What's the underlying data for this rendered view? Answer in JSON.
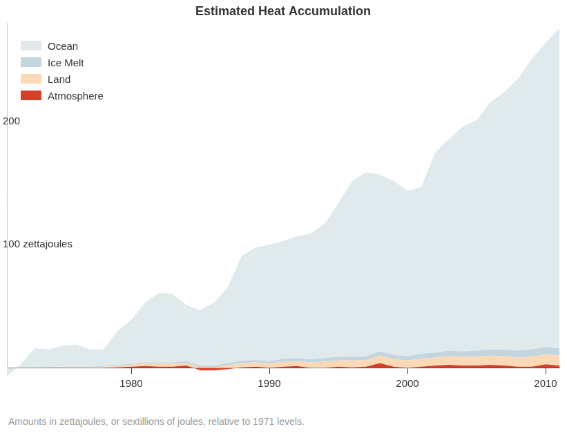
{
  "chart_data": {
    "type": "area",
    "title": "Estimated Heat Accumulation",
    "note": "Amounts in zettajoules, or sextillions of joules, relative to 1971 levels.",
    "x": [
      1971,
      1972,
      1973,
      1974,
      1975,
      1976,
      1977,
      1978,
      1979,
      1980,
      1981,
      1982,
      1983,
      1984,
      1985,
      1986,
      1987,
      1988,
      1989,
      1990,
      1991,
      1992,
      1993,
      1994,
      1995,
      1996,
      1997,
      1998,
      1999,
      2000,
      2001,
      2002,
      2003,
      2004,
      2005,
      2006,
      2007,
      2008,
      2009,
      2010,
      2011
    ],
    "series": [
      {
        "name": "Ocean",
        "color": "#e0eaec",
        "values": [
          -7,
          3,
          16,
          14.5,
          17,
          18,
          14,
          13.5,
          27.5,
          35.5,
          48.5,
          56.5,
          55.5,
          45.5,
          45,
          51,
          62,
          85,
          91.5,
          94.5,
          95.5,
          99,
          102,
          109,
          125,
          143,
          149.5,
          143.5,
          141.5,
          134.5,
          135.5,
          162.5,
          172,
          182.5,
          187,
          201,
          209,
          221,
          236,
          247,
          260
        ]
      },
      {
        "name": "Ice Melt",
        "color": "#c3d6df",
        "values": [
          0,
          0,
          0,
          0.5,
          0.5,
          0.5,
          0.5,
          0.5,
          1,
          1,
          1,
          1,
          1,
          1.5,
          1.5,
          1.5,
          2,
          2,
          2,
          2,
          2.5,
          2.5,
          2.5,
          3,
          3,
          3,
          3,
          3.5,
          3.5,
          3.5,
          4,
          4,
          4.5,
          4.5,
          5,
          5,
          5.5,
          5.5,
          6,
          6,
          6
        ]
      },
      {
        "name": "Land",
        "color": "#fcd9b6",
        "values": [
          0,
          0,
          0,
          0,
          0.5,
          0.5,
          0.5,
          1,
          1,
          1.5,
          2,
          2.5,
          2.5,
          2,
          2.5,
          2.5,
          3,
          3.5,
          3.5,
          3.5,
          4,
          4,
          4.5,
          5,
          5,
          5.5,
          5.5,
          6,
          6,
          6,
          6.5,
          6.5,
          7,
          7,
          7,
          7.5,
          7.5,
          7.5,
          8,
          8,
          8
        ]
      },
      {
        "name": "Atmosphere",
        "color": "#d6402b",
        "values": [
          0,
          0,
          0,
          0,
          0,
          0,
          0,
          0,
          0.5,
          1,
          1.5,
          1,
          1,
          2,
          -2,
          -2,
          -1,
          0.5,
          1,
          0,
          1,
          1.5,
          0,
          0,
          1,
          0.5,
          1,
          4,
          1,
          0,
          1,
          2,
          2.5,
          2,
          2,
          2.5,
          2,
          1,
          1,
          3,
          2
        ]
      }
    ],
    "xlim": [
      1971,
      2011
    ],
    "xticks": [
      1980,
      1990,
      2000,
      2010
    ],
    "ylim": [
      -7,
      280
    ],
    "yticks": [
      {
        "value": 100,
        "label": "100 zettajoules"
      },
      200
    ],
    "grid": true,
    "legend": "upper left",
    "stacked": true
  }
}
